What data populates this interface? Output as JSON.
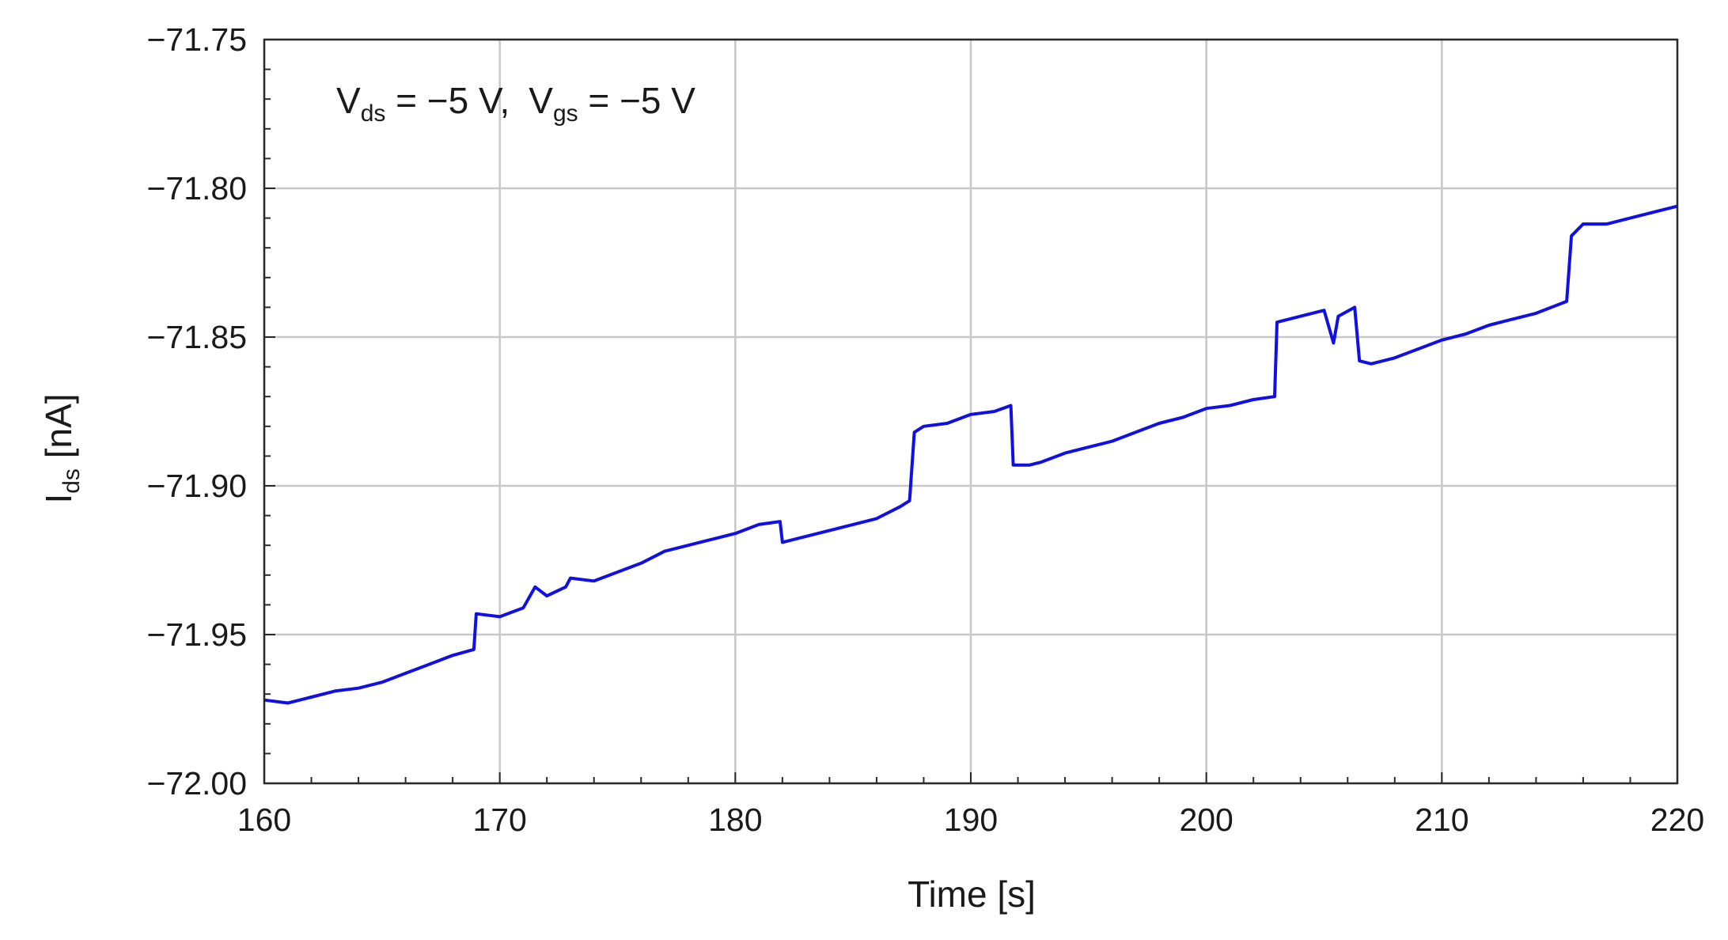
{
  "chart_data": {
    "type": "line",
    "xlabel": "Time [s]",
    "ylabel": {
      "main": "I",
      "sub": "ds",
      "unit": " [nA]"
    },
    "annotation": {
      "v1": "V",
      "v1_sub": "ds",
      "v1_val": " = −5 V,",
      "v2": "V",
      "v2_sub": "gs",
      "v2_val": " = −5 V"
    },
    "xlim": [
      160,
      220
    ],
    "ylim": [
      -72.0,
      -71.75
    ],
    "x_ticks": [
      160,
      170,
      180,
      190,
      200,
      210,
      220
    ],
    "y_ticks": [
      -72.0,
      -71.95,
      -71.9,
      -71.85,
      -71.8,
      -71.75
    ],
    "x_tick_labels": [
      "160",
      "170",
      "180",
      "190",
      "200",
      "210",
      "220"
    ],
    "y_tick_labels": [
      "−72.00",
      "−71.95",
      "−71.90",
      "−71.85",
      "−71.80",
      "−71.75"
    ],
    "grid": true,
    "series": [
      {
        "color": "#1010e6",
        "points": [
          [
            160.0,
            -71.972
          ],
          [
            161.0,
            -71.973
          ],
          [
            162.0,
            -71.971
          ],
          [
            163.0,
            -71.969
          ],
          [
            164.0,
            -71.968
          ],
          [
            165.0,
            -71.966
          ],
          [
            166.0,
            -71.963
          ],
          [
            167.0,
            -71.96
          ],
          [
            168.0,
            -71.957
          ],
          [
            168.9,
            -71.955
          ],
          [
            169.0,
            -71.943
          ],
          [
            170.0,
            -71.944
          ],
          [
            171.0,
            -71.941
          ],
          [
            171.5,
            -71.934
          ],
          [
            172.0,
            -71.937
          ],
          [
            172.8,
            -71.934
          ],
          [
            173.0,
            -71.931
          ],
          [
            174.0,
            -71.932
          ],
          [
            175.0,
            -71.929
          ],
          [
            176.0,
            -71.926
          ],
          [
            177.0,
            -71.922
          ],
          [
            178.0,
            -71.92
          ],
          [
            179.0,
            -71.918
          ],
          [
            180.0,
            -71.916
          ],
          [
            181.0,
            -71.913
          ],
          [
            181.9,
            -71.912
          ],
          [
            182.0,
            -71.919
          ],
          [
            183.0,
            -71.917
          ],
          [
            184.0,
            -71.915
          ],
          [
            185.0,
            -71.913
          ],
          [
            186.0,
            -71.911
          ],
          [
            187.0,
            -71.907
          ],
          [
            187.4,
            -71.905
          ],
          [
            187.6,
            -71.882
          ],
          [
            188.0,
            -71.88
          ],
          [
            189.0,
            -71.879
          ],
          [
            190.0,
            -71.876
          ],
          [
            191.0,
            -71.875
          ],
          [
            191.7,
            -71.873
          ],
          [
            191.8,
            -71.893
          ],
          [
            192.5,
            -71.893
          ],
          [
            193.0,
            -71.892
          ],
          [
            194.0,
            -71.889
          ],
          [
            195.0,
            -71.887
          ],
          [
            196.0,
            -71.885
          ],
          [
            197.0,
            -71.882
          ],
          [
            198.0,
            -71.879
          ],
          [
            199.0,
            -71.877
          ],
          [
            200.0,
            -71.874
          ],
          [
            201.0,
            -71.873
          ],
          [
            202.0,
            -71.871
          ],
          [
            202.9,
            -71.87
          ],
          [
            203.0,
            -71.845
          ],
          [
            204.0,
            -71.843
          ],
          [
            205.0,
            -71.841
          ],
          [
            205.4,
            -71.852
          ],
          [
            205.6,
            -71.843
          ],
          [
            206.3,
            -71.84
          ],
          [
            206.5,
            -71.858
          ],
          [
            207.0,
            -71.859
          ],
          [
            208.0,
            -71.857
          ],
          [
            209.0,
            -71.854
          ],
          [
            210.0,
            -71.851
          ],
          [
            211.0,
            -71.849
          ],
          [
            212.0,
            -71.846
          ],
          [
            213.0,
            -71.844
          ],
          [
            214.0,
            -71.842
          ],
          [
            215.3,
            -71.838
          ],
          [
            215.5,
            -71.816
          ],
          [
            216.0,
            -71.812
          ],
          [
            217.0,
            -71.812
          ],
          [
            218.0,
            -71.81
          ],
          [
            219.0,
            -71.808
          ],
          [
            220.0,
            -71.806
          ]
        ]
      }
    ]
  }
}
